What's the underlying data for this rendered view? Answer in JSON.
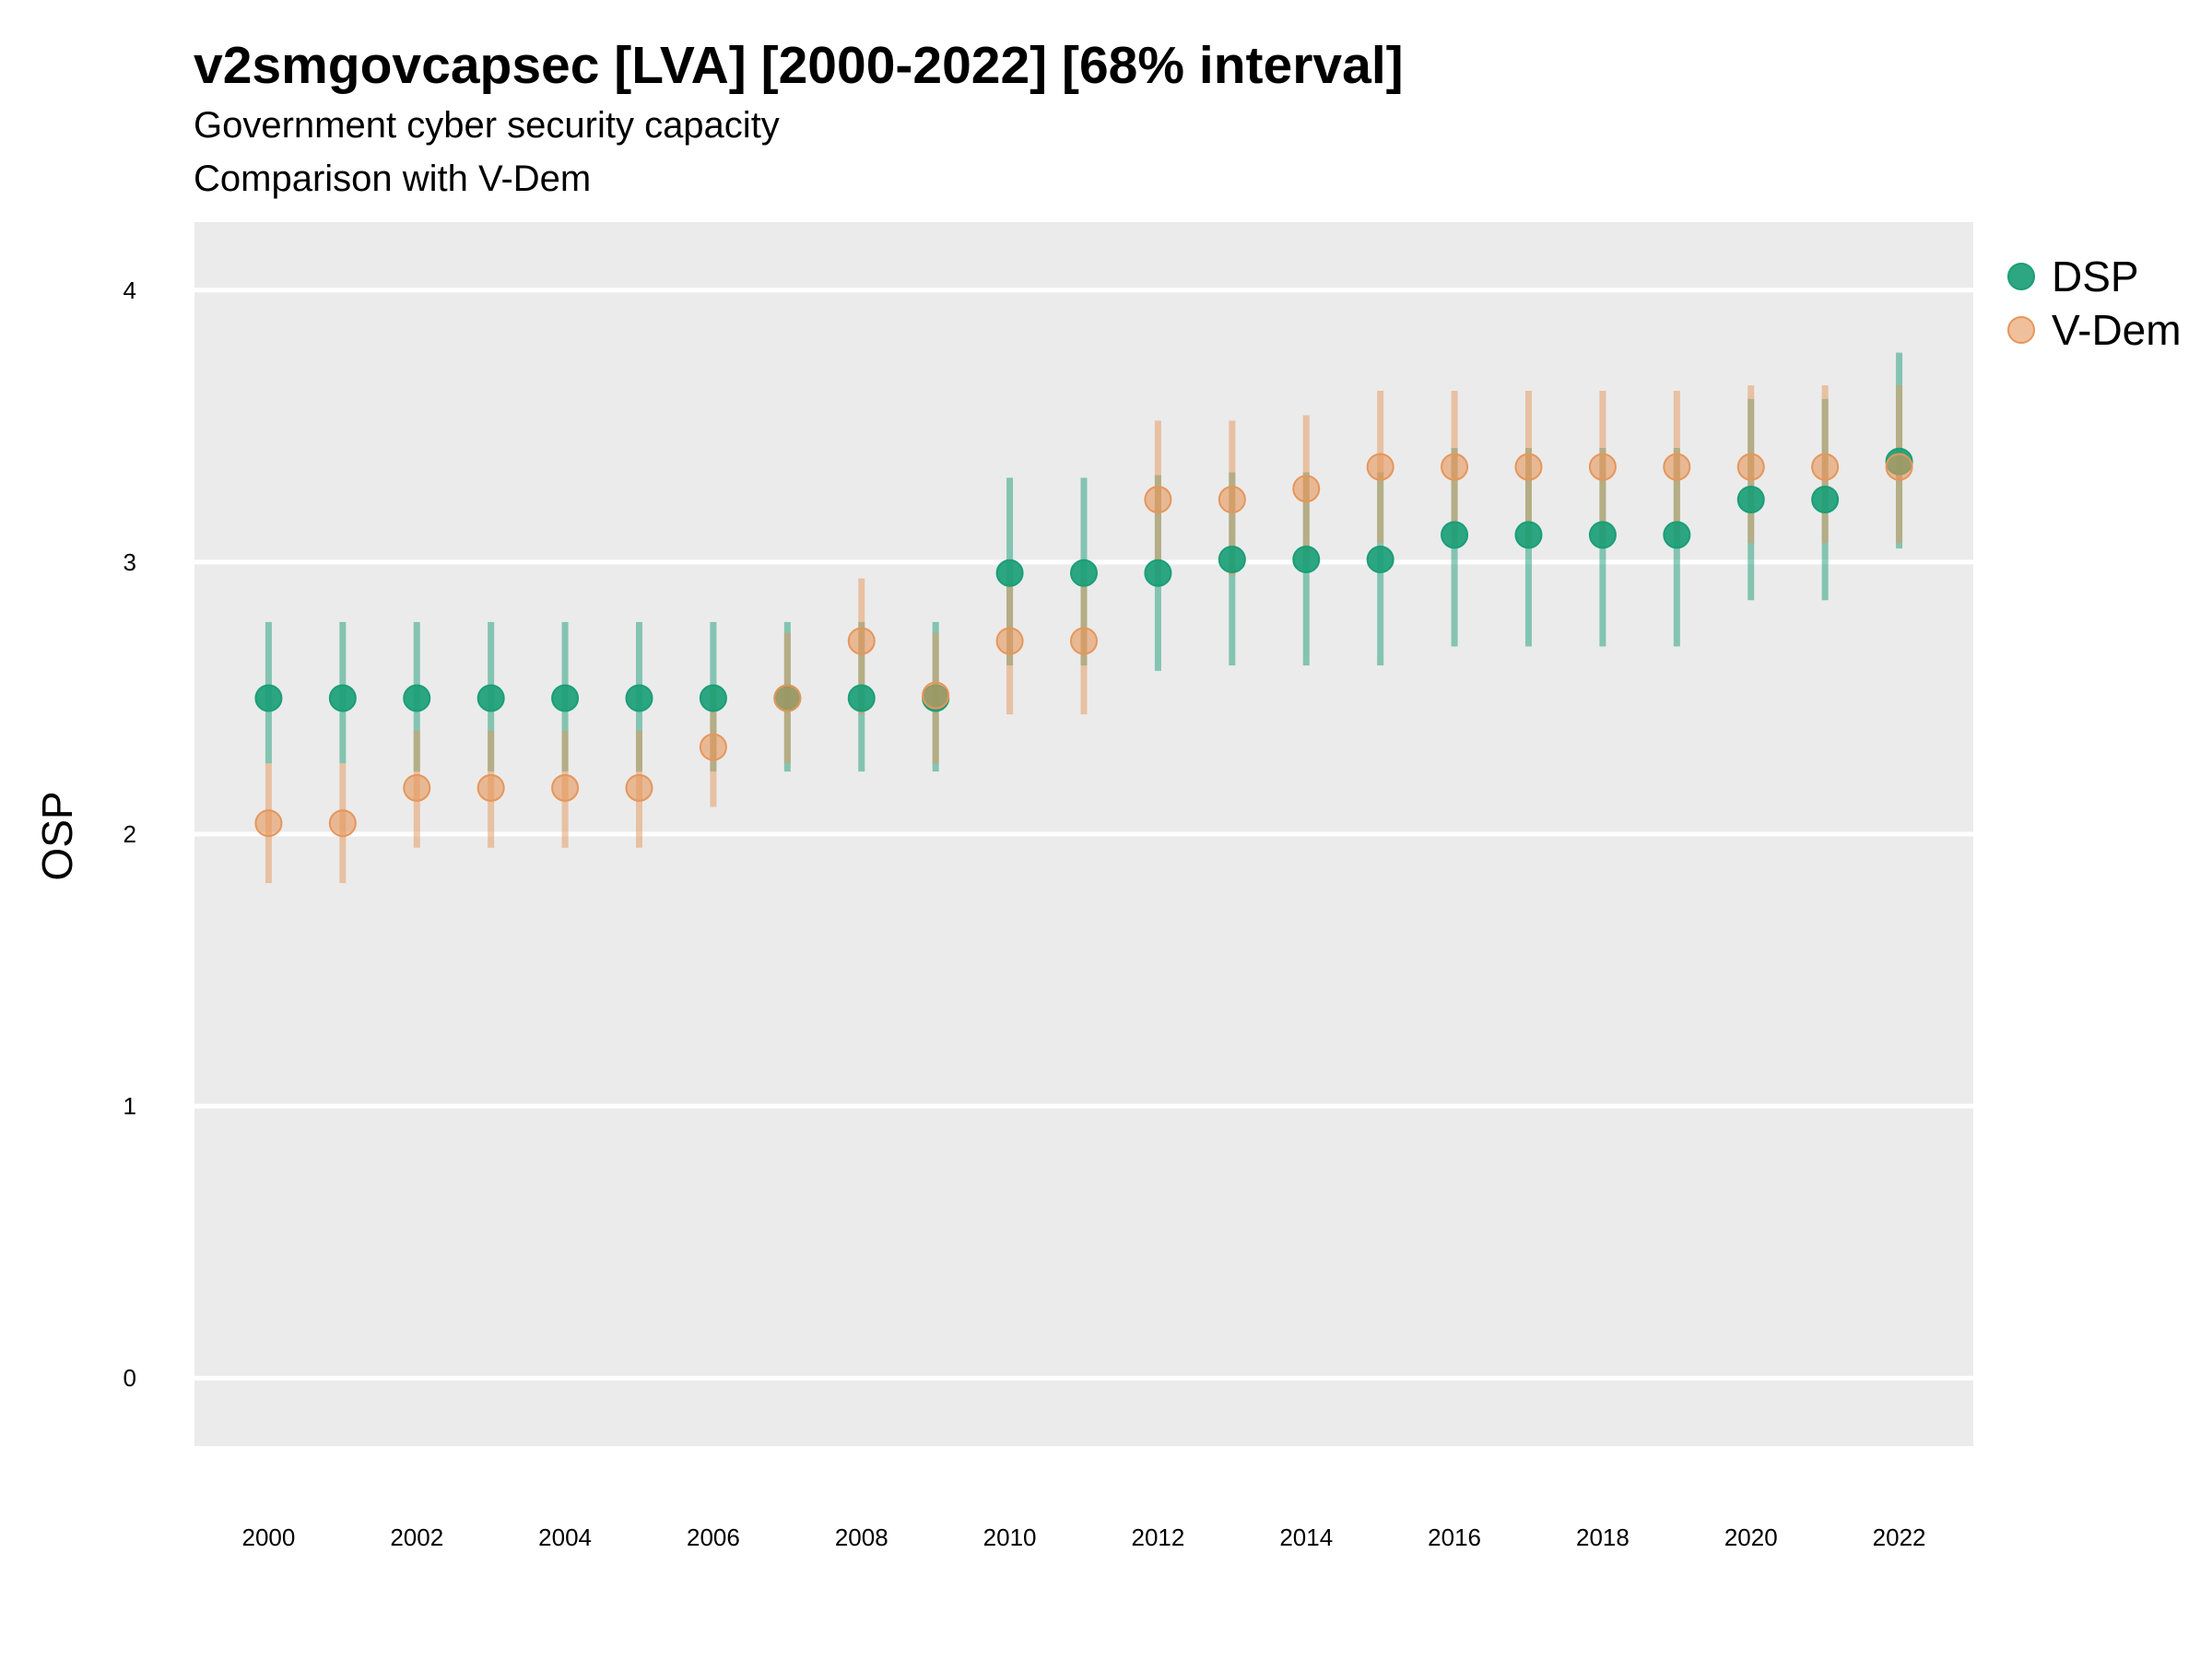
{
  "title": "v2smgovcapsec [LVA] [2000-2022] [68% interval]",
  "subtitle1": "Government cyber security capacity",
  "subtitle2": "Comparison with V-Dem",
  "chart_data": {
    "type": "scatter",
    "title": "v2smgovcapsec [LVA] [2000-2022] [68% interval]",
    "subtitle": [
      "Government cyber security capacity",
      "Comparison with V-Dem"
    ],
    "xlabel": "",
    "ylabel": "OSP",
    "xlim": [
      1999,
      2023
    ],
    "ylim": [
      -0.25,
      4.25
    ],
    "x_ticks": [
      2000,
      2002,
      2004,
      2006,
      2008,
      2010,
      2012,
      2014,
      2016,
      2018,
      2020,
      2022
    ],
    "y_ticks": [
      0,
      1,
      2,
      3,
      4
    ],
    "grid": true,
    "legend": "right",
    "x": [
      2000,
      2001,
      2002,
      2003,
      2004,
      2005,
      2006,
      2007,
      2008,
      2009,
      2010,
      2011,
      2012,
      2013,
      2014,
      2015,
      2016,
      2017,
      2018,
      2019,
      2020,
      2021,
      2022
    ],
    "series": [
      {
        "name": "DSP",
        "color": "#1b9e77",
        "values": [
          2.5,
          2.5,
          2.5,
          2.5,
          2.5,
          2.5,
          2.5,
          2.5,
          2.5,
          2.5,
          2.96,
          2.96,
          2.96,
          3.01,
          3.01,
          3.01,
          3.1,
          3.1,
          3.1,
          3.1,
          3.23,
          3.23,
          3.37
        ],
        "lower": [
          2.26,
          2.26,
          2.23,
          2.23,
          2.23,
          2.23,
          2.23,
          2.23,
          2.23,
          2.23,
          2.62,
          2.62,
          2.6,
          2.62,
          2.62,
          2.62,
          2.69,
          2.69,
          2.69,
          2.69,
          2.86,
          2.86,
          3.05
        ],
        "upper": [
          2.78,
          2.78,
          2.78,
          2.78,
          2.78,
          2.78,
          2.78,
          2.78,
          2.78,
          2.78,
          3.31,
          3.31,
          3.32,
          3.33,
          3.33,
          3.33,
          3.42,
          3.42,
          3.42,
          3.42,
          3.6,
          3.6,
          3.77
        ]
      },
      {
        "name": "V-Dem",
        "color": "#e6965a",
        "values": [
          2.04,
          2.04,
          2.17,
          2.17,
          2.17,
          2.17,
          2.32,
          2.5,
          2.71,
          2.51,
          2.71,
          2.71,
          3.23,
          3.23,
          3.27,
          3.35,
          3.35,
          3.35,
          3.35,
          3.35,
          3.35,
          3.35,
          3.35
        ],
        "lower": [
          1.82,
          1.82,
          1.95,
          1.95,
          1.95,
          1.95,
          2.1,
          2.26,
          2.44,
          2.26,
          2.44,
          2.44,
          2.95,
          2.95,
          3.0,
          3.07,
          3.07,
          3.07,
          3.07,
          3.07,
          3.07,
          3.07,
          3.07
        ],
        "upper": [
          2.26,
          2.26,
          2.38,
          2.38,
          2.38,
          2.38,
          2.54,
          2.74,
          2.94,
          2.74,
          2.94,
          2.94,
          3.52,
          3.52,
          3.54,
          3.63,
          3.63,
          3.63,
          3.63,
          3.63,
          3.65,
          3.65,
          3.65
        ]
      }
    ]
  }
}
